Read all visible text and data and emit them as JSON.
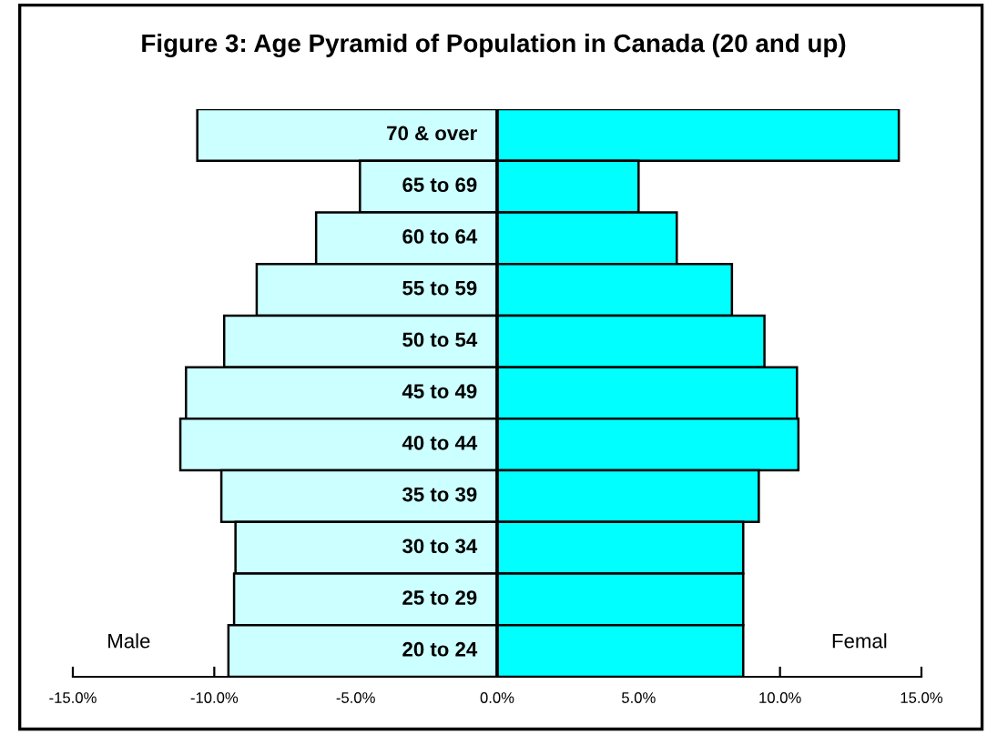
{
  "chart_data": {
    "type": "bar",
    "orientation": "horizontal",
    "title": "Figure 3: Age Pyramid of Population in Canada (20 and up)",
    "categories": [
      "70 & over",
      "65 to 69",
      "60 to 64",
      "55 to 59",
      "50 to 54",
      "45 to 49",
      "40 to 44",
      "35 to 39",
      "30 to 34",
      "25 to 29",
      "20 to 24"
    ],
    "series": [
      {
        "color": "#ccffff",
        "values": [
          -10.6,
          -4.85,
          -6.4,
          -8.5,
          -9.65,
          -11.0,
          -11.2,
          -9.75,
          -9.25,
          -9.3,
          -9.5
        ]
      },
      {
        "color": "#00ffff",
        "values": [
          14.2,
          5.0,
          6.35,
          8.3,
          9.45,
          10.6,
          10.65,
          9.25,
          8.7,
          8.7,
          8.7
        ]
      }
    ],
    "xlim": [
      -15,
      15
    ],
    "xticks": [
      {
        "value": -15,
        "label": "-15.0%"
      },
      {
        "value": -10,
        "label": "-10.0%"
      },
      {
        "value": -5,
        "label": "-5.0%"
      },
      {
        "value": 0,
        "label": "0.0%"
      },
      {
        "value": 5,
        "label": "5.0%"
      },
      {
        "value": 10,
        "label": "10.0%"
      },
      {
        "value": 15,
        "label": "15.0%"
      }
    ],
    "annotations": [
      "Male",
      "Femal"
    ],
    "stacked": true,
    "tick_labels": "x",
    "grid": false,
    "legend": false
  }
}
